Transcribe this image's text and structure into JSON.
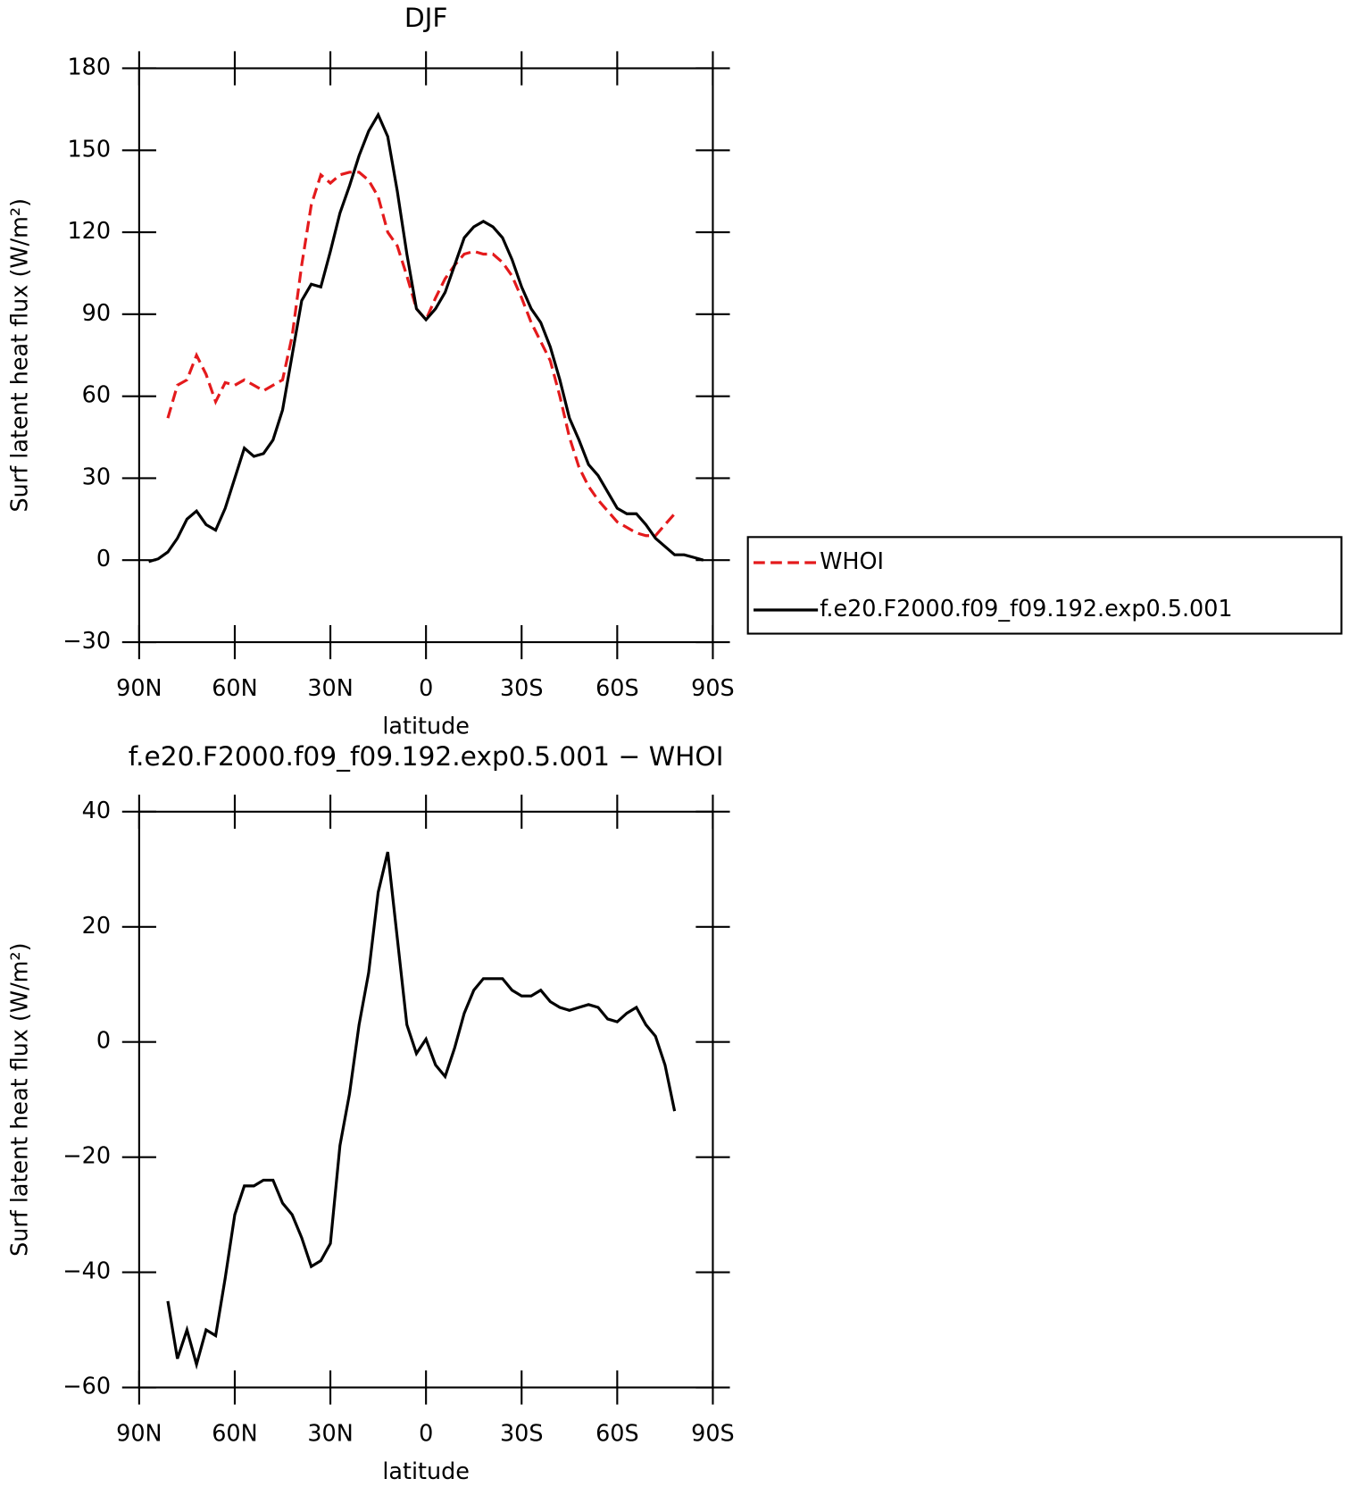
{
  "chart_data": [
    {
      "type": "line",
      "title": "DJF",
      "xlabel": "latitude",
      "ylabel": "Surf latent heat flux (W/m²)",
      "x": [
        87,
        84,
        81,
        78,
        75,
        72,
        69,
        66,
        63,
        60,
        57,
        54,
        51,
        48,
        45,
        42,
        39,
        36,
        33,
        30,
        27,
        24,
        21,
        18,
        15,
        12,
        9,
        6,
        3,
        0,
        -3,
        -6,
        -9,
        -12,
        -15,
        -18,
        -21,
        -24,
        -27,
        -30,
        -33,
        -36,
        -39,
        -42,
        -45,
        -48,
        -51,
        -54,
        -57,
        -60,
        -63,
        -66,
        -69,
        -72,
        -75,
        -78,
        -81,
        -84,
        -87
      ],
      "series": [
        {
          "name": "WHOI",
          "color": "#e41a1c",
          "linestyle": "dashed",
          "values": [
            null,
            null,
            52,
            64,
            66,
            75,
            68,
            58,
            65,
            64,
            66,
            64,
            62,
            64,
            66,
            82,
            108,
            130,
            141,
            138,
            141,
            142,
            142,
            139,
            133,
            120,
            115,
            104,
            92,
            88,
            96,
            103,
            108,
            112,
            113,
            112,
            112,
            109,
            104,
            96,
            87,
            80,
            73,
            60,
            45,
            34,
            27,
            22,
            18,
            14,
            12,
            10,
            9,
            9,
            13,
            17,
            null,
            null,
            null
          ]
        },
        {
          "name": "f.e20.F2000.f09_f09.192.exp0.5.001",
          "color": "#000000",
          "linestyle": "solid",
          "values": [
            -0.5,
            0.5,
            3,
            8,
            15,
            18,
            13,
            11,
            19,
            30,
            41,
            38,
            39,
            44,
            55,
            75,
            95,
            101,
            100,
            113,
            127,
            137,
            148,
            157,
            163,
            155,
            135,
            112,
            92,
            88,
            92,
            98,
            108,
            118,
            122,
            124,
            122,
            118,
            110,
            100,
            92,
            87,
            78,
            66,
            52,
            44,
            35,
            31,
            25,
            19,
            17,
            17,
            13,
            8,
            5,
            2,
            2,
            1,
            0
          ]
        }
      ],
      "xlim": [
        90,
        -90
      ],
      "xticks": [
        {
          "value": 90,
          "label": "90N"
        },
        {
          "value": 60,
          "label": "60N"
        },
        {
          "value": 30,
          "label": "30N"
        },
        0,
        {
          "value": -30,
          "label": "30S"
        },
        {
          "value": -60,
          "label": "60S"
        },
        {
          "value": -90,
          "label": "90S"
        }
      ],
      "ylim": [
        -30,
        180
      ],
      "yticks": [
        {
          "value": -30,
          "label": "−30"
        },
        0,
        30,
        60,
        90,
        120,
        150,
        180
      ],
      "legend": "right"
    },
    {
      "type": "line",
      "title": "f.e20.F2000.f09_f09.192.exp0.5.001 − WHOI",
      "xlabel": "latitude",
      "ylabel": "Surf latent heat flux (W/m²)",
      "x": [
        87,
        84,
        81,
        78,
        75,
        72,
        69,
        66,
        63,
        60,
        57,
        54,
        51,
        48,
        45,
        42,
        39,
        36,
        33,
        30,
        27,
        24,
        21,
        18,
        15,
        12,
        9,
        6,
        3,
        0,
        -3,
        -6,
        -9,
        -12,
        -15,
        -18,
        -21,
        -24,
        -27,
        -30,
        -33,
        -36,
        -39,
        -42,
        -45,
        -48,
        -51,
        -54,
        -57,
        -60,
        -63,
        -66,
        -69,
        -72,
        -75,
        -78,
        -81,
        -84,
        -87
      ],
      "series": [
        {
          "color": "#000000",
          "linestyle": "solid",
          "values": [
            null,
            null,
            -45,
            -55,
            -50,
            -56,
            -50,
            -51,
            -41,
            -30,
            -25,
            -25,
            -24,
            -24,
            -28,
            -30,
            -34,
            -39,
            -38,
            -35,
            -18,
            -9,
            3,
            12,
            26,
            33,
            18,
            3,
            -2,
            0.5,
            -4,
            -6,
            -1,
            5,
            9,
            11,
            11,
            11,
            9,
            8,
            8,
            9,
            7,
            6,
            5.5,
            6,
            6.5,
            6,
            4,
            3.5,
            5,
            6,
            3,
            1,
            -4,
            -12,
            null,
            null,
            null
          ]
        }
      ],
      "xlim": [
        90,
        -90
      ],
      "xticks": [
        {
          "value": 90,
          "label": "90N"
        },
        {
          "value": 60,
          "label": "60N"
        },
        {
          "value": 30,
          "label": "30N"
        },
        0,
        {
          "value": -30,
          "label": "30S"
        },
        {
          "value": -60,
          "label": "60S"
        },
        {
          "value": -90,
          "label": "90S"
        }
      ],
      "ylim": [
        -60,
        40
      ],
      "yticks": [
        {
          "value": -60,
          "label": "−60"
        },
        {
          "value": -40,
          "label": "−40"
        },
        {
          "value": -20,
          "label": "−20"
        },
        0,
        20,
        40
      ]
    }
  ]
}
